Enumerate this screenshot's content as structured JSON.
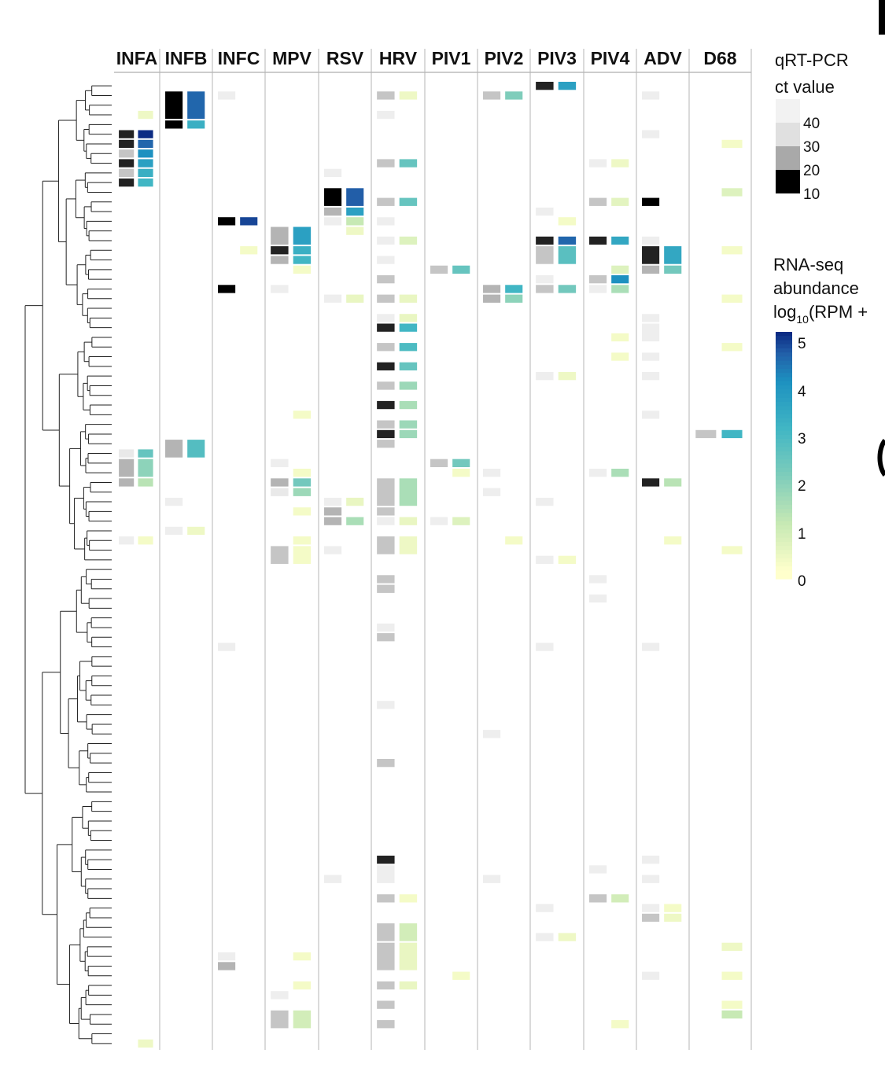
{
  "chart_data": {
    "type": "heatmap",
    "title": "",
    "columns": [
      "INFA",
      "INFB",
      "INFC",
      "MPV",
      "RSV",
      "HRV",
      "PIV1",
      "PIV2",
      "PIV3",
      "PIV4",
      "ADV",
      "D68"
    ],
    "row_count": 100,
    "cell_fields": [
      "column",
      "row_start",
      "row_end",
      "ct_value",
      "log10_rpm"
    ],
    "cells": [
      [
        "INFA",
        3,
        3,
        null,
        0.3
      ],
      [
        "INFA",
        5,
        5,
        12,
        5
      ],
      [
        "INFA",
        6,
        6,
        12,
        4.5
      ],
      [
        "INFA",
        7,
        7,
        25,
        4
      ],
      [
        "INFA",
        8,
        8,
        12,
        3.6
      ],
      [
        "INFA",
        9,
        9,
        25,
        3.2
      ],
      [
        "INFA",
        10,
        10,
        12,
        3
      ],
      [
        "INFA",
        38,
        38,
        35,
        2.4
      ],
      [
        "INFA",
        39,
        40,
        22,
        1.8
      ],
      [
        "INFA",
        41,
        41,
        22,
        1.2
      ],
      [
        "INFA",
        47,
        47,
        38,
        0.2
      ],
      [
        "INFA",
        99,
        99,
        null,
        0.3
      ],
      [
        "INFB",
        1,
        3,
        10,
        4.5
      ],
      [
        "INFB",
        4,
        4,
        10,
        3.2
      ],
      [
        "INFB",
        37,
        38,
        22,
        2.7
      ],
      [
        "INFB",
        43,
        43,
        38,
        null
      ],
      [
        "INFB",
        46,
        46,
        38,
        0.3
      ],
      [
        "INFC",
        1,
        1,
        38,
        null
      ],
      [
        "INFC",
        14,
        14,
        10,
        4.8
      ],
      [
        "INFC",
        17,
        17,
        null,
        0.2
      ],
      [
        "INFC",
        21,
        21,
        10,
        null
      ],
      [
        "INFC",
        58,
        58,
        38,
        null
      ],
      [
        "INFC",
        90,
        90,
        38,
        null
      ],
      [
        "INFC",
        91,
        91,
        22,
        null
      ],
      [
        "MPV",
        15,
        16,
        22,
        3.6
      ],
      [
        "MPV",
        17,
        17,
        12,
        3.2
      ],
      [
        "MPV",
        18,
        18,
        22,
        3
      ],
      [
        "MPV",
        19,
        19,
        null,
        0.2
      ],
      [
        "MPV",
        21,
        21,
        38,
        null
      ],
      [
        "MPV",
        34,
        34,
        null,
        0.2
      ],
      [
        "MPV",
        39,
        39,
        38,
        null
      ],
      [
        "MPV",
        40,
        40,
        null,
        0.2
      ],
      [
        "MPV",
        41,
        41,
        22,
        2.2
      ],
      [
        "MPV",
        42,
        42,
        35,
        1.6
      ],
      [
        "MPV",
        44,
        44,
        null,
        0.2
      ],
      [
        "MPV",
        47,
        47,
        null,
        0.2
      ],
      [
        "MPV",
        48,
        49,
        25,
        0.2
      ],
      [
        "MPV",
        90,
        90,
        null,
        0.2
      ],
      [
        "MPV",
        93,
        93,
        null,
        0.2
      ],
      [
        "MPV",
        94,
        94,
        38,
        null
      ],
      [
        "MPV",
        96,
        97,
        25,
        0.8
      ],
      [
        "RSV",
        9,
        9,
        38,
        null
      ],
      [
        "RSV",
        11,
        12,
        10,
        4.6
      ],
      [
        "RSV",
        13,
        13,
        22,
        3.6
      ],
      [
        "RSV",
        14,
        14,
        38,
        1
      ],
      [
        "RSV",
        15,
        15,
        null,
        0.3
      ],
      [
        "RSV",
        22,
        22,
        38,
        0.4
      ],
      [
        "RSV",
        43,
        43,
        38,
        0.4
      ],
      [
        "RSV",
        44,
        44,
        22,
        null
      ],
      [
        "RSV",
        45,
        45,
        22,
        1.4
      ],
      [
        "RSV",
        48,
        48,
        38,
        null
      ],
      [
        "RSV",
        82,
        82,
        38,
        null
      ],
      [
        "HRV",
        1,
        1,
        25,
        0.3
      ],
      [
        "HRV",
        3,
        3,
        38,
        null
      ],
      [
        "HRV",
        8,
        8,
        25,
        2.4
      ],
      [
        "HRV",
        12,
        12,
        25,
        2.4
      ],
      [
        "HRV",
        14,
        14,
        38,
        null
      ],
      [
        "HRV",
        16,
        16,
        38,
        0.6
      ],
      [
        "HRV",
        18,
        18,
        38,
        null
      ],
      [
        "HRV",
        20,
        20,
        25,
        null
      ],
      [
        "HRV",
        22,
        22,
        25,
        0.4
      ],
      [
        "HRV",
        24,
        24,
        38,
        0.4
      ],
      [
        "HRV",
        25,
        25,
        12,
        3
      ],
      [
        "HRV",
        27,
        27,
        25,
        2.8
      ],
      [
        "HRV",
        29,
        29,
        12,
        2.4
      ],
      [
        "HRV",
        31,
        31,
        25,
        1.6
      ],
      [
        "HRV",
        33,
        33,
        12,
        1.4
      ],
      [
        "HRV",
        35,
        35,
        25,
        1.6
      ],
      [
        "HRV",
        36,
        36,
        12,
        1.6
      ],
      [
        "HRV",
        37,
        37,
        25,
        null
      ],
      [
        "HRV",
        41,
        43,
        25,
        1.4
      ],
      [
        "HRV",
        44,
        44,
        25,
        null
      ],
      [
        "HRV",
        45,
        45,
        38,
        0.4
      ],
      [
        "HRV",
        47,
        48,
        25,
        0.3
      ],
      [
        "HRV",
        51,
        51,
        25,
        null
      ],
      [
        "HRV",
        52,
        52,
        25,
        null
      ],
      [
        "HRV",
        56,
        56,
        38,
        null
      ],
      [
        "HRV",
        57,
        57,
        25,
        null
      ],
      [
        "HRV",
        64,
        64,
        38,
        null
      ],
      [
        "HRV",
        70,
        70,
        25,
        null
      ],
      [
        "HRV",
        80,
        80,
        12,
        null
      ],
      [
        "HRV",
        81,
        82,
        38,
        null
      ],
      [
        "HRV",
        84,
        84,
        25,
        0.2
      ],
      [
        "HRV",
        87,
        88,
        25,
        0.8
      ],
      [
        "HRV",
        89,
        91,
        25,
        0.4
      ],
      [
        "HRV",
        93,
        93,
        25,
        0.4
      ],
      [
        "HRV",
        95,
        95,
        25,
        null
      ],
      [
        "HRV",
        97,
        97,
        25,
        null
      ],
      [
        "PIV1",
        19,
        19,
        25,
        2.4
      ],
      [
        "PIV1",
        39,
        39,
        25,
        2.2
      ],
      [
        "PIV1",
        40,
        40,
        null,
        0.2
      ],
      [
        "PIV1",
        45,
        45,
        38,
        0.6
      ],
      [
        "PIV1",
        92,
        92,
        null,
        0.2
      ],
      [
        "PIV2",
        1,
        1,
        25,
        2
      ],
      [
        "PIV2",
        21,
        21,
        22,
        3
      ],
      [
        "PIV2",
        22,
        22,
        22,
        1.8
      ],
      [
        "PIV2",
        40,
        40,
        38,
        null
      ],
      [
        "PIV2",
        42,
        42,
        38,
        null
      ],
      [
        "PIV2",
        47,
        47,
        null,
        0.2
      ],
      [
        "PIV2",
        67,
        67,
        38,
        null
      ],
      [
        "PIV2",
        82,
        82,
        38,
        null
      ],
      [
        "PIV3",
        0,
        0,
        12,
        3.6
      ],
      [
        "PIV3",
        13,
        13,
        38,
        null
      ],
      [
        "PIV3",
        14,
        14,
        null,
        0.2
      ],
      [
        "PIV3",
        16,
        16,
        12,
        4.5
      ],
      [
        "PIV3",
        17,
        18,
        25,
        2.6
      ],
      [
        "PIV3",
        20,
        20,
        38,
        null
      ],
      [
        "PIV3",
        21,
        21,
        25,
        2.2
      ],
      [
        "PIV3",
        30,
        30,
        38,
        0.3
      ],
      [
        "PIV3",
        43,
        43,
        38,
        null
      ],
      [
        "PIV3",
        49,
        49,
        38,
        0.2
      ],
      [
        "PIV3",
        58,
        58,
        38,
        null
      ],
      [
        "PIV3",
        85,
        85,
        38,
        null
      ],
      [
        "PIV3",
        88,
        88,
        38,
        0.3
      ],
      [
        "PIV4",
        8,
        8,
        38,
        0.3
      ],
      [
        "PIV4",
        12,
        12,
        25,
        0.5
      ],
      [
        "PIV4",
        16,
        16,
        12,
        3.4
      ],
      [
        "PIV4",
        19,
        19,
        null,
        0.6
      ],
      [
        "PIV4",
        20,
        20,
        25,
        4
      ],
      [
        "PIV4",
        21,
        21,
        38,
        1.4
      ],
      [
        "PIV4",
        26,
        26,
        null,
        0.2
      ],
      [
        "PIV4",
        28,
        28,
        null,
        0.2
      ],
      [
        "PIV4",
        40,
        40,
        38,
        1.4
      ],
      [
        "PIV4",
        51,
        51,
        38,
        null
      ],
      [
        "PIV4",
        53,
        53,
        38,
        null
      ],
      [
        "PIV4",
        81,
        81,
        38,
        null
      ],
      [
        "PIV4",
        84,
        84,
        25,
        0.8
      ],
      [
        "PIV4",
        97,
        97,
        null,
        0.2
      ],
      [
        "ADV",
        1,
        1,
        38,
        null
      ],
      [
        "ADV",
        5,
        5,
        38,
        null
      ],
      [
        "ADV",
        12,
        12,
        10,
        null
      ],
      [
        "ADV",
        16,
        16,
        38,
        null
      ],
      [
        "ADV",
        17,
        18,
        12,
        3.4
      ],
      [
        "ADV",
        19,
        19,
        22,
        2.2
      ],
      [
        "ADV",
        24,
        24,
        38,
        null
      ],
      [
        "ADV",
        25,
        26,
        38,
        null
      ],
      [
        "ADV",
        28,
        28,
        38,
        null
      ],
      [
        "ADV",
        30,
        30,
        38,
        null
      ],
      [
        "ADV",
        34,
        34,
        38,
        null
      ],
      [
        "ADV",
        41,
        41,
        12,
        1.2
      ],
      [
        "ADV",
        47,
        47,
        null,
        0.2
      ],
      [
        "ADV",
        58,
        58,
        38,
        null
      ],
      [
        "ADV",
        80,
        80,
        38,
        null
      ],
      [
        "ADV",
        82,
        82,
        38,
        null
      ],
      [
        "ADV",
        85,
        85,
        38,
        0.2
      ],
      [
        "ADV",
        86,
        86,
        25,
        0.3
      ],
      [
        "ADV",
        92,
        92,
        38,
        null
      ],
      [
        "D68",
        6,
        6,
        null,
        0.2
      ],
      [
        "D68",
        11,
        11,
        null,
        0.6
      ],
      [
        "D68",
        17,
        17,
        null,
        0.2
      ],
      [
        "D68",
        22,
        22,
        null,
        0.2
      ],
      [
        "D68",
        27,
        27,
        null,
        0.2
      ],
      [
        "D68",
        36,
        36,
        25,
        3
      ],
      [
        "D68",
        48,
        48,
        null,
        0.2
      ],
      [
        "D68",
        89,
        89,
        null,
        0.3
      ],
      [
        "D68",
        92,
        92,
        null,
        0.2
      ],
      [
        "D68",
        95,
        95,
        null,
        0.2
      ],
      [
        "D68",
        96,
        96,
        null,
        1
      ]
    ],
    "legend_ct": {
      "title_lines": [
        "qRT-PCR",
        "ct value"
      ],
      "ticks": [
        "40",
        "30",
        "20",
        "10"
      ],
      "colors": [
        "#f2f2f2",
        "#e0e0e0",
        "#a9a9a9",
        "#000000"
      ]
    },
    "legend_rpm": {
      "title_lines": [
        "RNA-seq",
        "abundance",
        "log",
        "10",
        "(RPM +"
      ],
      "ticks": [
        "5",
        "4",
        "3",
        "2",
        "1",
        "0"
      ],
      "colors": [
        "#ffffcc",
        "#c7e9b4",
        "#7fcdbb",
        "#41b6c4",
        "#1d91c0",
        "#225ea8",
        "#0c2c84"
      ]
    },
    "legend_placement": "right",
    "dendrogram": "left"
  },
  "panel_letters": [
    "",
    ""
  ]
}
